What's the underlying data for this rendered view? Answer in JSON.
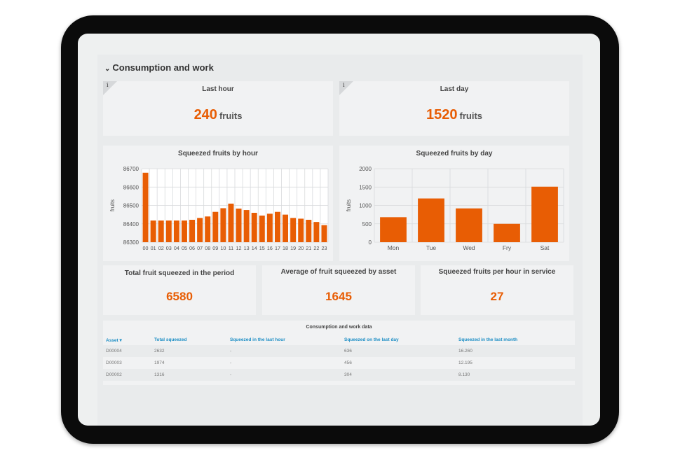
{
  "section": {
    "title": "Consumption and work",
    "chevron_icon": "chevron-down-icon"
  },
  "last_hour": {
    "title": "Last hour",
    "value": "240",
    "unit": "fruits",
    "info_icon": "i"
  },
  "last_day": {
    "title": "Last day",
    "value": "1520",
    "unit": "fruits",
    "info_icon": "i"
  },
  "chart_data": [
    {
      "type": "bar",
      "title": "Squeezed fruits by hour",
      "xlabel": "",
      "ylabel": "fruits",
      "categories": [
        "00",
        "01",
        "02",
        "03",
        "04",
        "05",
        "06",
        "07",
        "08",
        "09",
        "10",
        "11",
        "12",
        "13",
        "14",
        "15",
        "16",
        "17",
        "18",
        "19",
        "20",
        "21",
        "22",
        "23"
      ],
      "values": [
        86678,
        86418,
        86418,
        86418,
        86418,
        86418,
        86422,
        86432,
        86440,
        86465,
        86485,
        86510,
        86483,
        86475,
        86460,
        86445,
        86455,
        86465,
        86450,
        86432,
        86428,
        86422,
        86410,
        86393
      ],
      "ylim": [
        86300,
        86700
      ],
      "yticks": [
        "86300",
        "86400",
        "86500",
        "86600",
        "86700"
      ],
      "grid": true,
      "bar_color": "#e85d04"
    },
    {
      "type": "bar",
      "title": "Squeezed fruits by day",
      "xlabel": "",
      "ylabel": "fruits",
      "categories": [
        "Mon",
        "Tue",
        "Wed",
        "Fry",
        "Sat"
      ],
      "values": [
        680,
        1190,
        920,
        500,
        1510
      ],
      "ylim": [
        0,
        2000
      ],
      "yticks": [
        "0",
        "500",
        "1000",
        "1500",
        "2000"
      ],
      "grid": true,
      "bar_color": "#e85d04"
    }
  ],
  "kpis": {
    "total": {
      "title": "Total fruit squeezed in the period",
      "value": "6580"
    },
    "average": {
      "title": "Average of fruit squeezed by asset",
      "value": "1645"
    },
    "per_hour": {
      "title": "Squeezed fruits per hour in service",
      "value": "27"
    }
  },
  "table": {
    "title": "Consumption and work data",
    "headers": [
      "Asset",
      "Total squeezed",
      "Squeezed in the last hour",
      "Squeezed on the last day",
      "Squeezed in the last month"
    ],
    "sort_icon": "chevron-down-icon",
    "rows": [
      [
        "D00004",
        "2632",
        "-",
        "636",
        "16.260"
      ],
      [
        "D00003",
        "1974",
        "-",
        "456",
        "12.195"
      ],
      [
        "D00002",
        "1316",
        "-",
        "304",
        "8.130"
      ]
    ]
  }
}
